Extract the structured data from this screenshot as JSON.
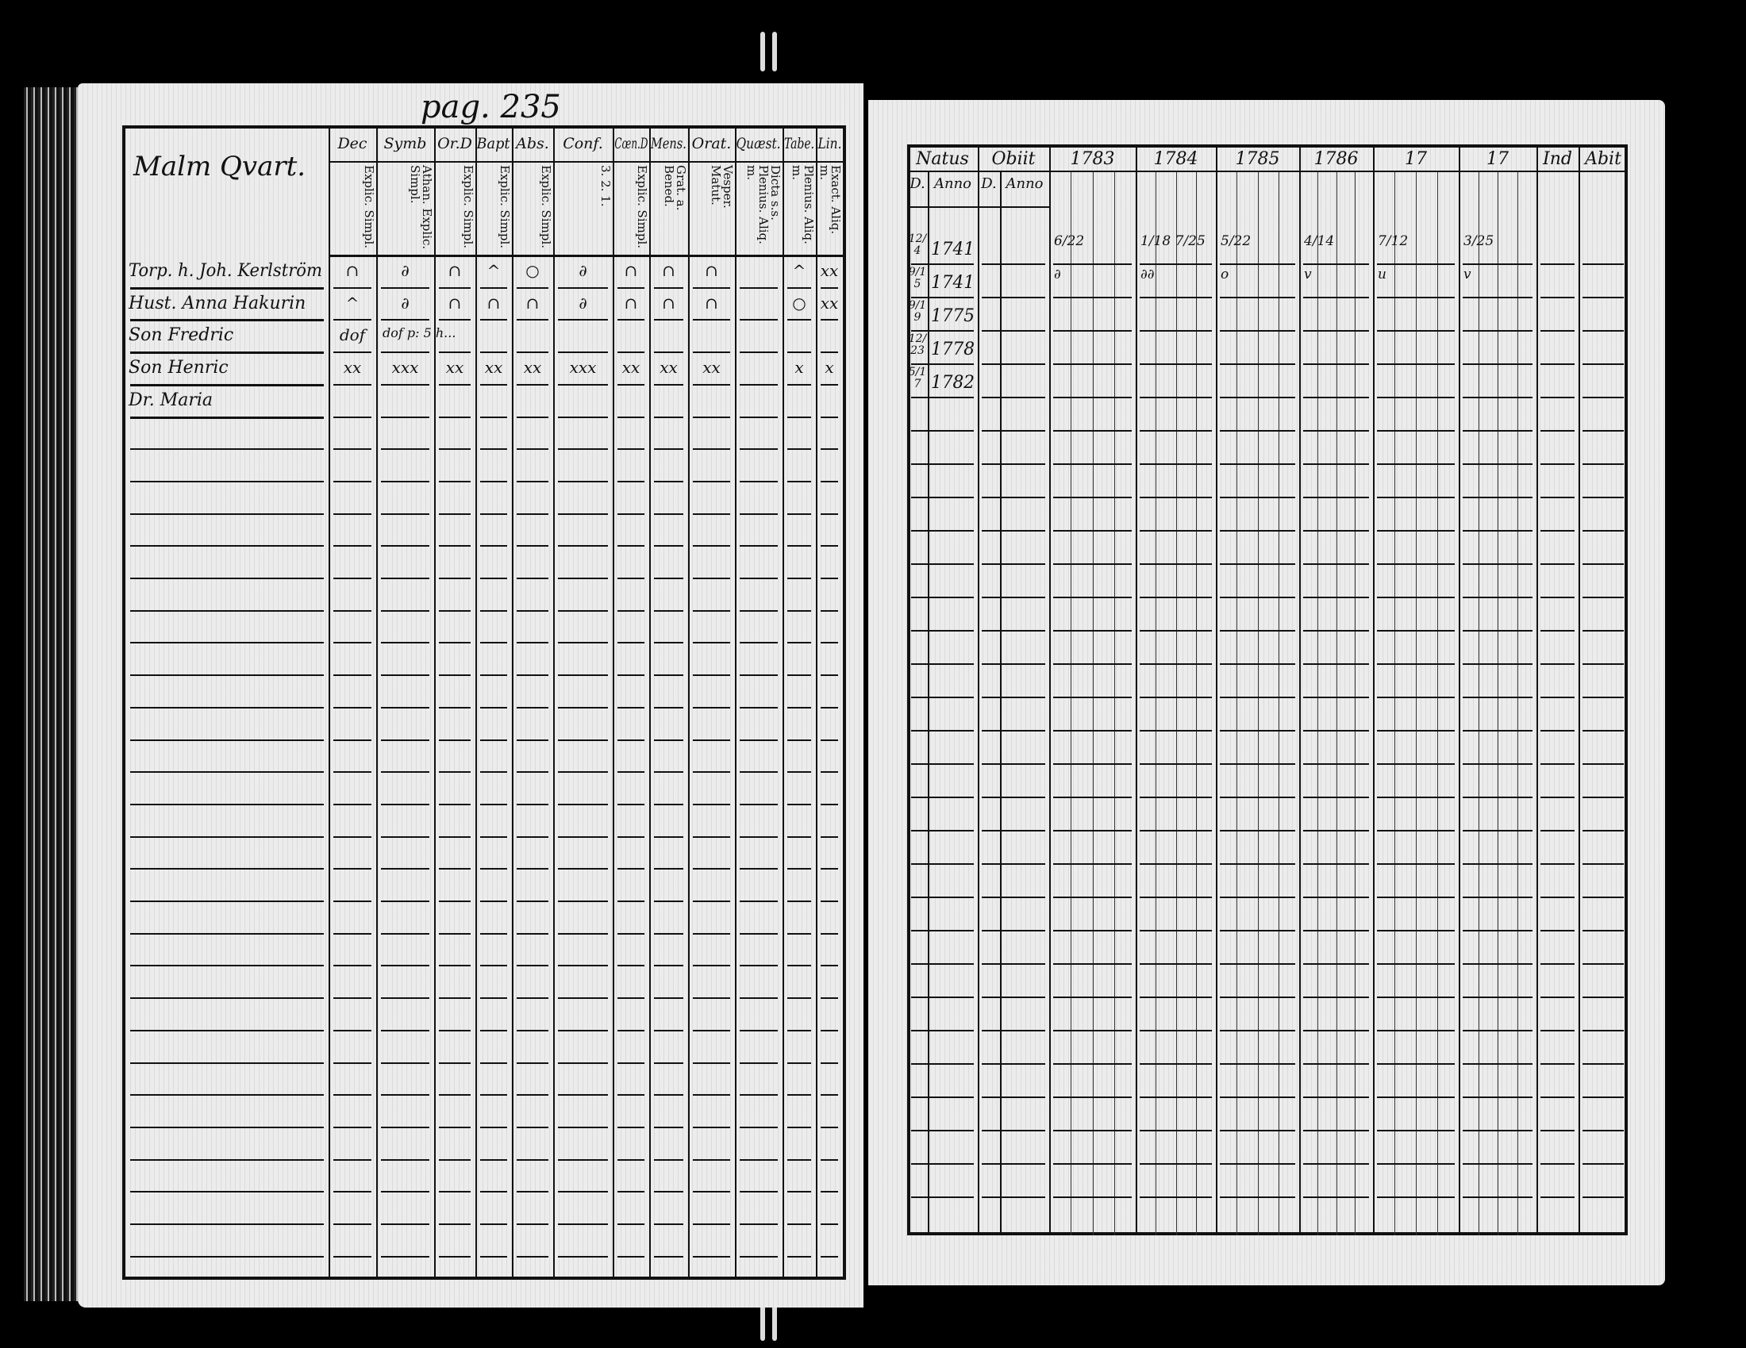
{
  "left_page": {
    "page_number": "pag. 235",
    "title": "Malm Qvart.",
    "columns": [
      {
        "label": "Dec",
        "sub": "Explic. Simpl."
      },
      {
        "label": "Symb",
        "sub": "Athan. Explic. Simpl."
      },
      {
        "label": "Or.D",
        "sub": "Explic. Simpl."
      },
      {
        "label": "Bapt",
        "sub": "Explic. Simpl."
      },
      {
        "label": "Abs.",
        "sub": "Explic. Simpl."
      },
      {
        "label": "Conf.",
        "sub": "3. 2. 1."
      },
      {
        "label": "Cœn.D",
        "sub": "Explic. Simpl."
      },
      {
        "label": "Mens.",
        "sub": "Grat. a. Bened."
      },
      {
        "label": "Orat.",
        "sub": "Vesper. Matut."
      },
      {
        "label": "Quæst.",
        "sub": "Dicta s.s. Plenius. Aliq. m."
      },
      {
        "label": "Tabe.",
        "sub": "Plenius. Aliq. m."
      },
      {
        "label": "Lin.",
        "sub": "Exact. Aliq. m."
      }
    ],
    "rows": [
      {
        "name": "Torp. h. Joh. Kerlström",
        "marks": [
          "∩",
          "∂",
          "∩",
          "^",
          "○",
          "∂",
          "∩",
          "∩",
          "∩",
          "",
          "^",
          "xx"
        ]
      },
      {
        "name": "Hust. Anna Hakurin",
        "marks": [
          "^",
          "∂",
          "∩",
          "∩",
          "∩",
          "∂",
          "∩",
          "∩",
          "∩",
          "",
          "○",
          "xx"
        ]
      },
      {
        "name": "Son Fredric",
        "marks": [
          "dof",
          "",
          "",
          "",
          "",
          "",
          "",
          "",
          "",
          "",
          "",
          ""
        ],
        "note": "dof p: 5 h..."
      },
      {
        "name": "Son Henric",
        "marks": [
          "xx",
          "xxx",
          "xx",
          "xx",
          "xx",
          "xxx",
          "xx",
          "xx",
          "xx",
          "",
          "x",
          "x"
        ]
      },
      {
        "name": "Dr. Maria",
        "marks": [
          "",
          "",
          "",
          "",
          "",
          "",
          "",
          "",
          "",
          "",
          "",
          ""
        ]
      }
    ]
  },
  "right_page": {
    "headers": {
      "natus": "Natus",
      "obiit": "Obiit",
      "years": [
        "1783",
        "1784",
        "1785",
        "1786",
        "17",
        "17"
      ],
      "ind": "Ind",
      "abit": "Abit",
      "day": "D.",
      "anno": "Anno"
    },
    "rows": [
      {
        "birth_day": "12/4",
        "birth_year": "1741",
        "exams": [
          "6/22",
          "1/18 7/25",
          "5/22",
          "4/14",
          "7/12",
          "3/25"
        ]
      },
      {
        "birth_day": "9/15",
        "birth_year": "1741",
        "exams": [
          "∂",
          "∂∂",
          "o",
          "v",
          "u",
          "v"
        ]
      },
      {
        "birth_day": "9/19",
        "birth_year": "1775",
        "exams": [
          "",
          "",
          "",
          "",
          "",
          ""
        ]
      },
      {
        "birth_day": "12/23",
        "birth_year": "1778",
        "exams": [
          "",
          "",
          "",
          "",
          "",
          ""
        ]
      },
      {
        "birth_day": "5/17",
        "birth_year": "1782",
        "exams": [
          "",
          "",
          "",
          "",
          "",
          ""
        ]
      }
    ]
  }
}
